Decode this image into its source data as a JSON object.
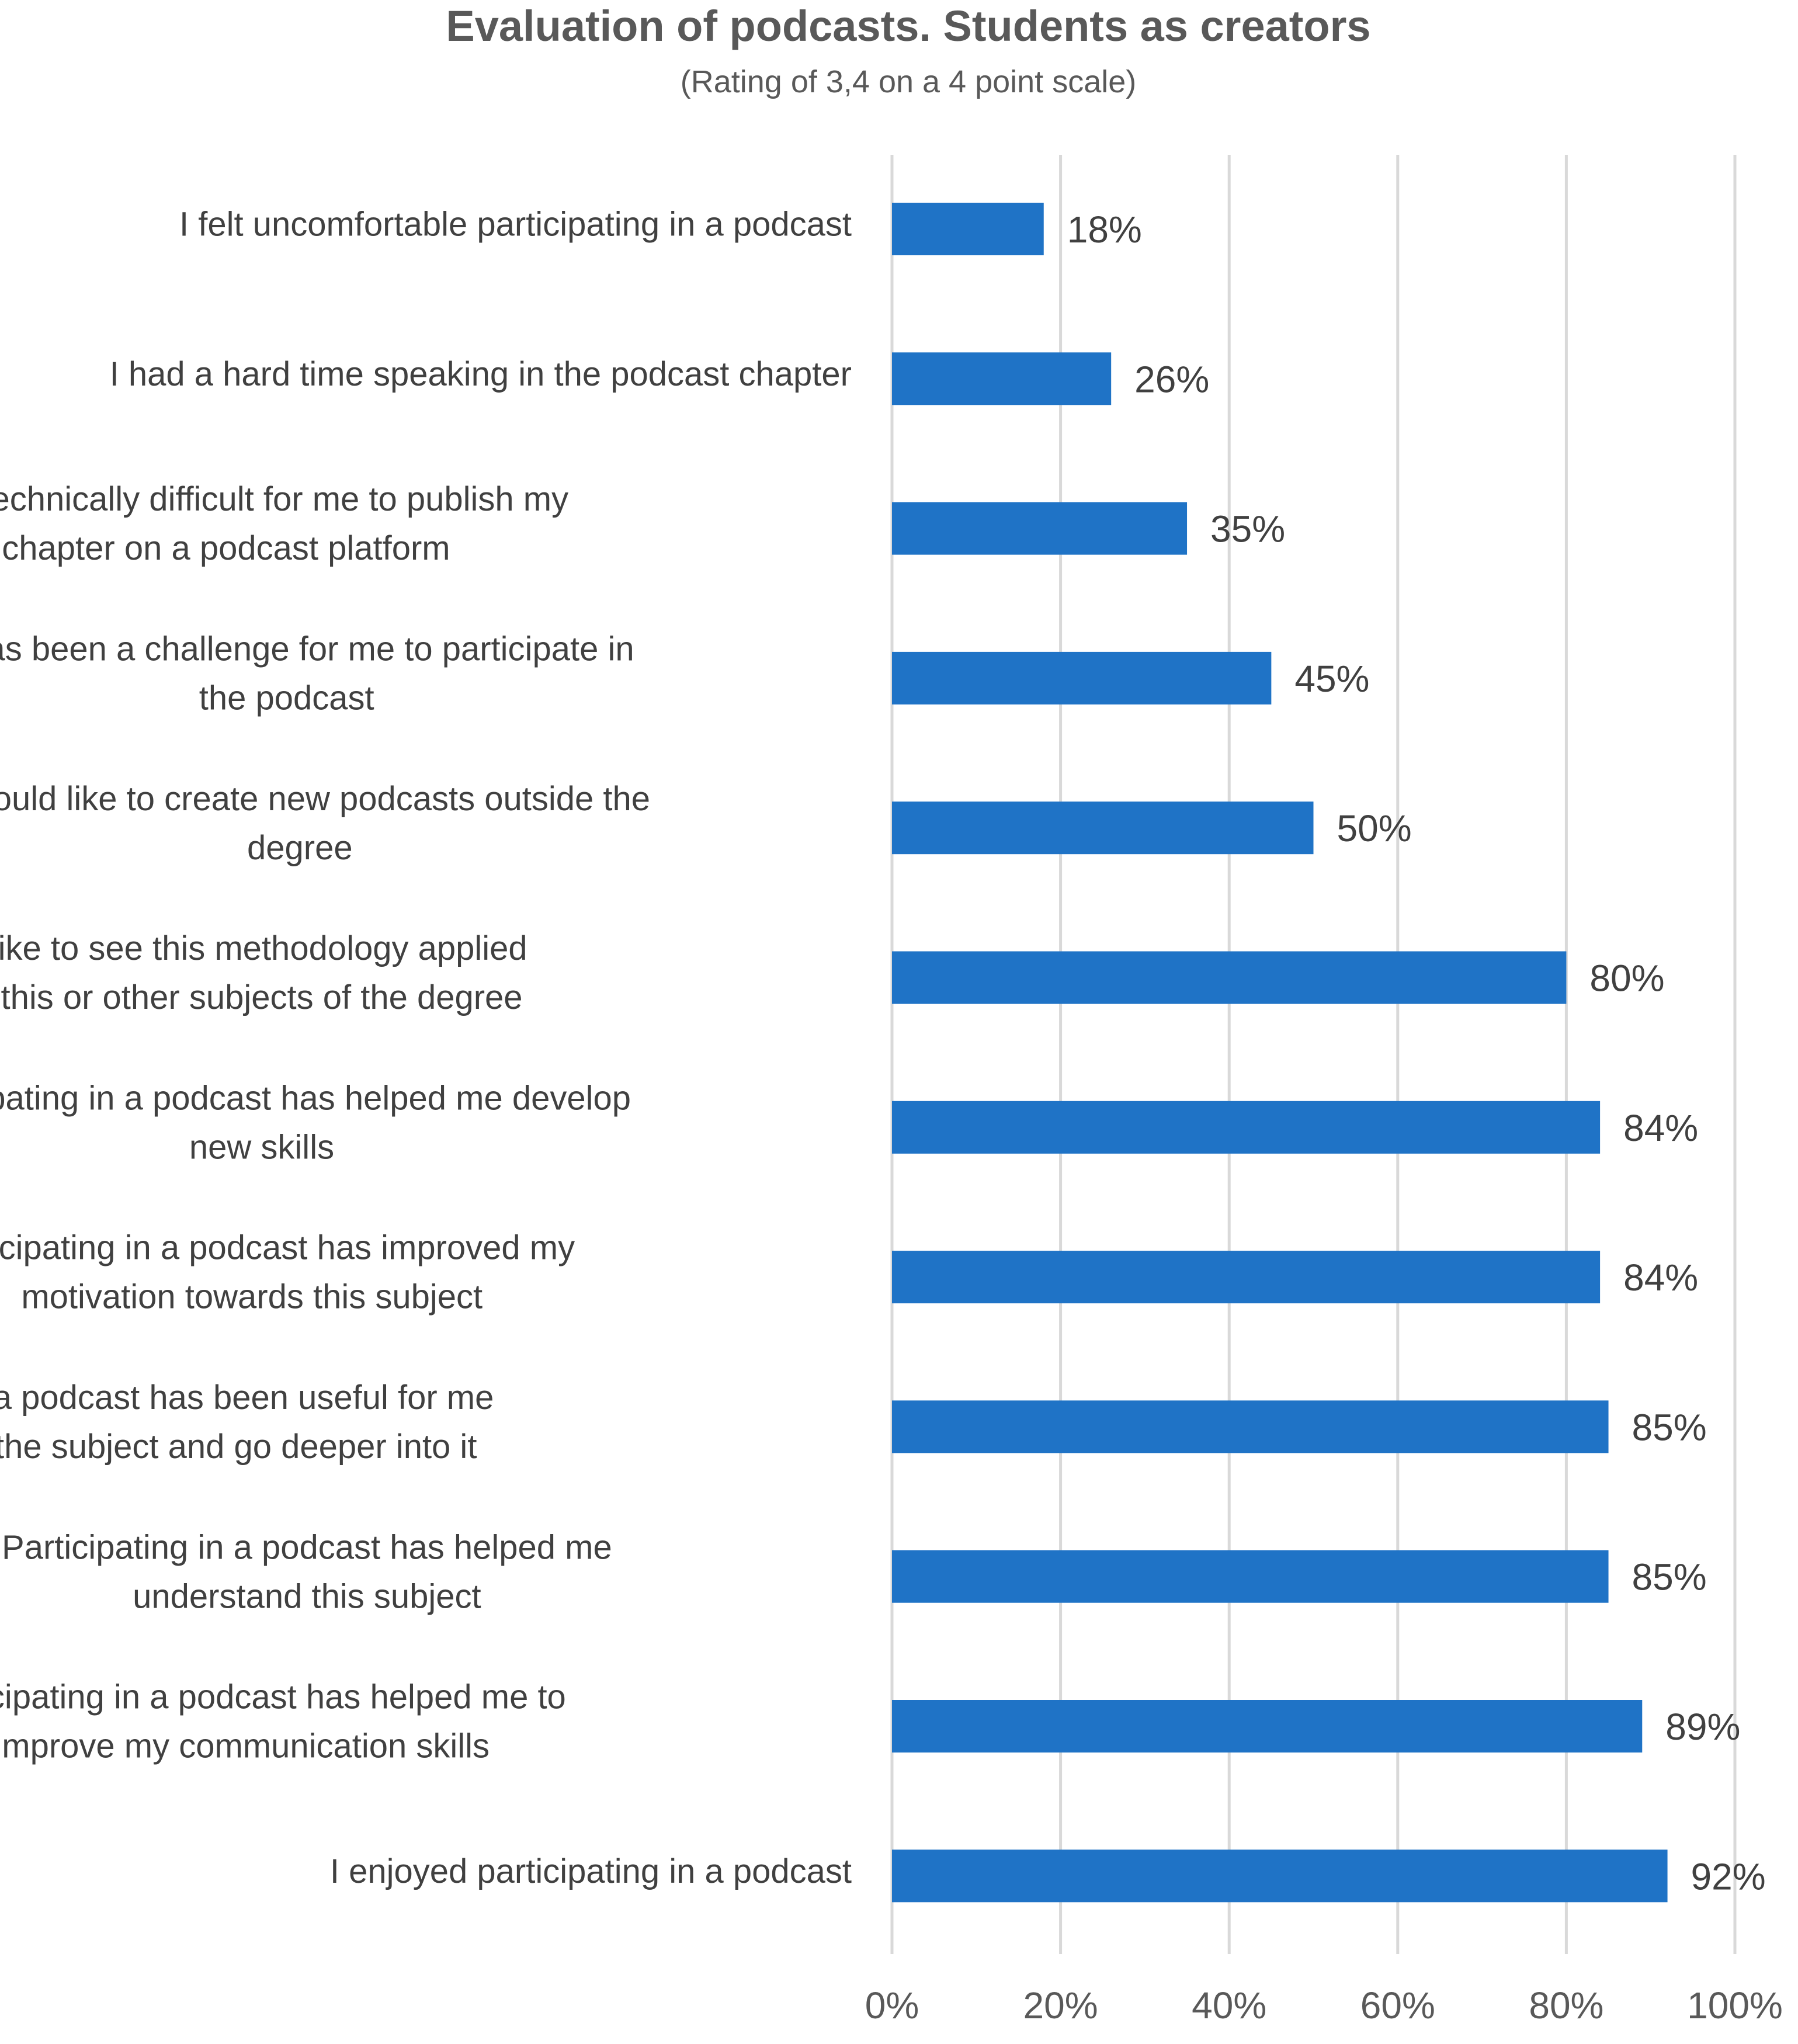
{
  "chart_data": {
    "type": "bar",
    "orientation": "horizontal",
    "title": "Evaluation of podcasts. Students as creators",
    "subtitle": "(Rating of 3,4 on a 4 point scale)",
    "categories": [
      [
        "I felt uncomfortable participating in a podcast"
      ],
      [
        "I had a hard time speaking in the podcast chapter"
      ],
      [
        "It was technically difficult for me to publish my",
        "chapter on a podcast platform"
      ],
      [
        "It has been a challenge for me to participate in",
        "the podcast"
      ],
      [
        "I would like to create new podcasts outside the",
        "degree"
      ],
      [
        "I would like to see this methodology applied",
        "more in this or other subjects of the degree"
      ],
      [
        "Participating in a podcast has helped me develop",
        "new skills"
      ],
      [
        "Participating in a podcast has improved my",
        "motivation towards this subject"
      ],
      [
        "Participating in a podcast has been useful for me",
        "to learn about the subject and go deeper into it"
      ],
      [
        "Participating in a podcast has helped me",
        "understand this subject"
      ],
      [
        "Participating in a podcast has helped me to",
        "improve my communication skills"
      ],
      [
        "I enjoyed participating in a podcast"
      ]
    ],
    "values": [
      18,
      26,
      35,
      45,
      50,
      80,
      84,
      84,
      85,
      85,
      89,
      92
    ],
    "value_labels": [
      "18%",
      "26%",
      "35%",
      "45%",
      "50%",
      "80%",
      "84%",
      "84%",
      "85%",
      "85%",
      "89%",
      "92%"
    ],
    "xlim": [
      0,
      100
    ],
    "xticks": [
      0,
      20,
      40,
      60,
      80,
      100
    ],
    "xtick_labels": [
      "0%",
      "20%",
      "40%",
      "60%",
      "80%",
      "100%"
    ],
    "xlabel": "",
    "ylabel": "",
    "grid": true,
    "legend": "none",
    "bar_color": "#1F73C6",
    "grid_color": "#D9D9D9"
  }
}
